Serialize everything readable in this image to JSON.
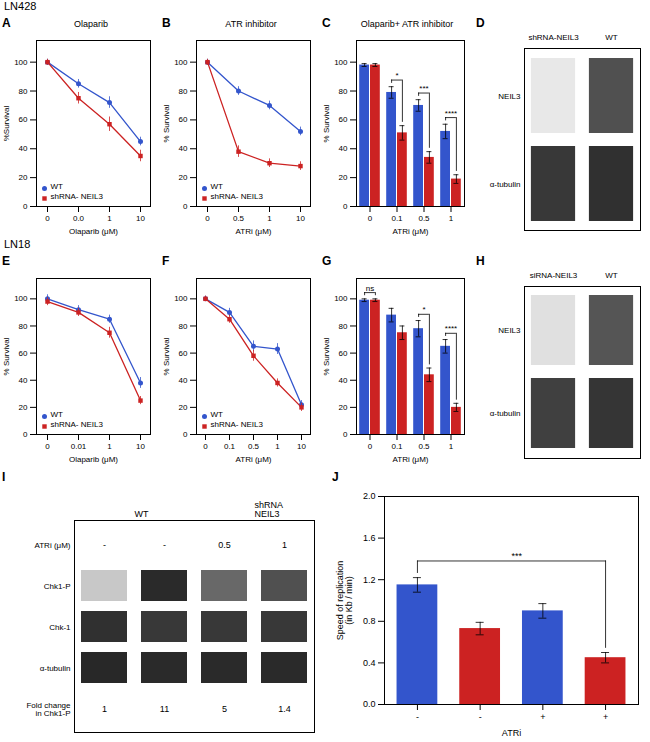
{
  "chart_data": [
    {
      "panel": "A",
      "section": "LN428",
      "type": "line",
      "title": "Olaparib",
      "xlabel": "Olaparib (μM)",
      "ylabel": "%Survival",
      "categories": [
        "0",
        "0.0",
        "1",
        "10"
      ],
      "series": [
        {
          "name": "WT",
          "color": "#3355cc",
          "marker": "circle",
          "values": [
            100,
            85,
            72,
            45
          ],
          "errors": [
            2,
            3,
            4,
            3
          ]
        },
        {
          "name": "shRNA- NEIL3",
          "color": "#cc2222",
          "marker": "square",
          "values": [
            100,
            75,
            57,
            35
          ],
          "errors": [
            2,
            4,
            5,
            4
          ]
        }
      ],
      "ylim": [
        0,
        115
      ],
      "yticks": [
        0,
        20,
        40,
        60,
        80,
        100
      ],
      "legend": "lower left"
    },
    {
      "panel": "B",
      "type": "line",
      "title": "ATR inhibitor",
      "xlabel": "ATRi (μM)",
      "ylabel": "% Survival",
      "categories": [
        "0",
        "0.5",
        "1",
        "10"
      ],
      "series": [
        {
          "name": "WT",
          "color": "#3355cc",
          "marker": "circle",
          "values": [
            100,
            80,
            70,
            52
          ],
          "errors": [
            2,
            3,
            3,
            3
          ]
        },
        {
          "name": "shRNA- NEIL3",
          "color": "#cc2222",
          "marker": "square",
          "values": [
            100,
            38,
            30,
            28
          ],
          "errors": [
            2,
            4,
            3,
            3
          ]
        }
      ],
      "ylim": [
        0,
        115
      ],
      "yticks": [
        0,
        20,
        40,
        60,
        80,
        100
      ],
      "legend": "lower left"
    },
    {
      "panel": "C",
      "type": "bar",
      "title": "Olaparib+ ATR inhibitor",
      "xlabel": "ATRi (μM)",
      "ylabel": "% Survival",
      "categories": [
        "0",
        "0.1",
        "0.5",
        "1"
      ],
      "series": [
        {
          "color": "#3355cc",
          "values": [
            98,
            79,
            70,
            52
          ],
          "errors": [
            1,
            4,
            4,
            5
          ]
        },
        {
          "color": "#cc2222",
          "values": [
            98,
            51,
            34,
            19
          ],
          "errors": [
            1,
            5,
            4,
            3
          ]
        }
      ],
      "ylim": [
        0,
        115
      ],
      "yticks": [
        0,
        20,
        40,
        60,
        80,
        100
      ],
      "annotations": [
        {
          "category": "0.1",
          "text": "*"
        },
        {
          "category": "0.5",
          "text": "***"
        },
        {
          "category": "1",
          "text": "****"
        }
      ]
    },
    {
      "panel": "D",
      "type": "blot",
      "columns": [
        "shRNA-NEIL3",
        "WT"
      ],
      "rows": [
        {
          "label": "NEIL3",
          "colors": [
            "#e8e8e8",
            "#505050"
          ]
        },
        {
          "label": "α-tubulin",
          "colors": [
            "#383838",
            "#303030"
          ]
        }
      ]
    },
    {
      "panel": "E",
      "section": "LN18",
      "type": "line",
      "xlabel": "Olaparib (μM)",
      "ylabel": "% Survival",
      "categories": [
        "0",
        "0.01",
        "1",
        "10"
      ],
      "series": [
        {
          "name": "WT",
          "color": "#3355cc",
          "marker": "circle",
          "values": [
            100,
            92,
            85,
            38
          ],
          "errors": [
            3,
            3,
            3,
            4
          ]
        },
        {
          "name": "shRNA- NEIL3",
          "color": "#cc2222",
          "marker": "square",
          "values": [
            98,
            90,
            75,
            25
          ],
          "errors": [
            3,
            3,
            4,
            3
          ]
        }
      ],
      "ylim": [
        0,
        115
      ],
      "yticks": [
        0,
        20,
        40,
        60,
        80,
        100
      ],
      "legend": "lower left"
    },
    {
      "panel": "F",
      "type": "line",
      "xlabel": "ATRi (μM)",
      "ylabel": "% Survival",
      "categories": [
        "0",
        "0.1",
        "0.5",
        "1",
        "10"
      ],
      "series": [
        {
          "name": "WT",
          "color": "#3355cc",
          "marker": "circle",
          "values": [
            100,
            90,
            65,
            63,
            22
          ],
          "errors": [
            2,
            3,
            4,
            4,
            3
          ]
        },
        {
          "name": "shRNA- NEIL3",
          "color": "#cc2222",
          "marker": "square",
          "values": [
            100,
            85,
            58,
            38,
            20
          ],
          "errors": [
            2,
            3,
            4,
            3,
            3
          ]
        }
      ],
      "ylim": [
        0,
        115
      ],
      "yticks": [
        0,
        20,
        40,
        60,
        80,
        100
      ],
      "legend": "lower left"
    },
    {
      "panel": "G",
      "type": "bar",
      "xlabel": "ATRi (μM)",
      "ylabel": "% Survival",
      "categories": [
        "0",
        "0.1",
        "0.5",
        "1"
      ],
      "series": [
        {
          "color": "#3355cc",
          "values": [
            99,
            88,
            78,
            65
          ],
          "errors": [
            1,
            5,
            6,
            5
          ]
        },
        {
          "color": "#cc2222",
          "values": [
            99,
            75,
            44,
            20
          ],
          "errors": [
            1,
            5,
            5,
            3
          ]
        }
      ],
      "ylim": [
        0,
        115
      ],
      "yticks": [
        0,
        20,
        40,
        60,
        80,
        100
      ],
      "annotations": [
        {
          "category": "0",
          "text": "ns"
        },
        {
          "category": "0.5",
          "text": "*"
        },
        {
          "category": "1",
          "text": "****"
        }
      ]
    },
    {
      "panel": "H",
      "type": "blot",
      "columns": [
        "siRNA-NEIL3",
        "WT"
      ],
      "rows": [
        {
          "label": "NEIL3",
          "colors": [
            "#e0e0e0",
            "#555555"
          ]
        },
        {
          "label": "α-tubulin",
          "colors": [
            "#404040",
            "#353535"
          ]
        }
      ]
    },
    {
      "panel": "I",
      "type": "blot",
      "column_groups": [
        "WT",
        "WT",
        "shRNA\nNEIL3",
        "shRNA\nNEIL3"
      ],
      "rows": [
        {
          "label": "ATRi (μM)",
          "values": [
            "-",
            "-",
            "0.5",
            "1"
          ]
        },
        {
          "label": "Chk1-P",
          "colors": [
            "#c8c8c8",
            "#2a2a2a",
            "#686868",
            "#505050"
          ]
        },
        {
          "label": "Chk-1",
          "colors": [
            "#303030",
            "#383838",
            "#383838",
            "#383838"
          ]
        },
        {
          "label": "α-tubulin",
          "colors": [
            "#282828",
            "#2a2a2a",
            "#2a2a2a",
            "#2a2a2a"
          ]
        },
        {
          "label": "Fold change\nin Chk1-P",
          "values": [
            "1",
            "11",
            "5",
            "1.4"
          ]
        }
      ]
    },
    {
      "panel": "J",
      "type": "bar",
      "xlabel": "ATRi",
      "ylabel": "Speed of replication\n(in Kb / min)",
      "categories": [
        "-",
        "-",
        "+",
        "+"
      ],
      "values": [
        1.15,
        0.73,
        0.9,
        0.45
      ],
      "errors": [
        0.07,
        0.06,
        0.07,
        0.05
      ],
      "colors": [
        "#3355cc",
        "#cc2222",
        "#3355cc",
        "#cc2222"
      ],
      "ylim": [
        0,
        2.0
      ],
      "yticks": [
        {
          "value": 0.0,
          "label": "0.0"
        },
        0.4,
        0.8,
        1.2,
        1.6,
        {
          "value": 2.0,
          "label": "2.0"
        }
      ],
      "annotations": [
        {
          "from": 0,
          "to": 3,
          "text": "***"
        }
      ]
    }
  ]
}
